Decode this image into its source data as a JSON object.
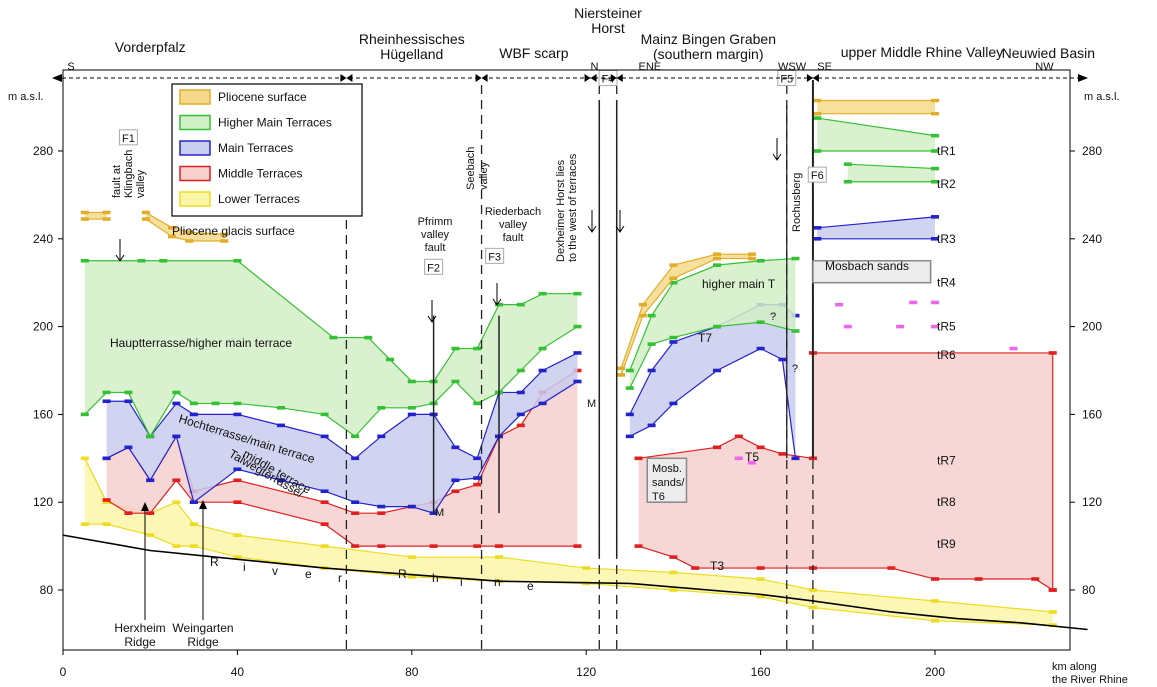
{
  "chart_data": {
    "type": "area",
    "x_axis": {
      "label_line1": "km along",
      "label_line2": "the River Rhine",
      "range": [
        0,
        230
      ],
      "ticks": [
        0,
        40,
        80,
        120,
        160,
        200
      ]
    },
    "y_axis": {
      "label": "m a.s.l.",
      "range": [
        60,
        300
      ],
      "ticks": [
        80,
        120,
        160,
        200,
        240,
        280
      ]
    },
    "regions": [
      {
        "text": "Vorderpfalz",
        "x": 20
      },
      {
        "text": "Rheinhessisches",
        "text2": "Hügelland",
        "x": 80
      },
      {
        "text": "WBF scarp",
        "x": 108
      },
      {
        "text": "Niersteiner",
        "text2": "Horst",
        "x": 125
      },
      {
        "text": "Mainz Bingen Graben",
        "text2": "(southern margin)",
        "x": 148
      },
      {
        "text": "upper Middle Rhine Valley",
        "x": 197
      },
      {
        "text": "Neuwied Basin",
        "x": 226
      }
    ],
    "directions": [
      {
        "text": "S",
        "x": 1
      },
      {
        "text": "N",
        "x": 121
      },
      {
        "text": "ENE",
        "x": 132
      },
      {
        "text": "WSW",
        "x": 164
      },
      {
        "text": "SE",
        "x": 173
      },
      {
        "text": "NW",
        "x": 223
      }
    ],
    "legend": [
      {
        "label": "Pliocene surface",
        "fill": "#f6d98c",
        "stroke": "#e2ad2a"
      },
      {
        "label": "Higher Main Terraces",
        "fill": "#d3efc7",
        "stroke": "#35c035"
      },
      {
        "label": "Main Terraces",
        "fill": "#c9cdef",
        "stroke": "#2323cc"
      },
      {
        "label": "Middle Terraces",
        "fill": "#f6cfcf",
        "stroke": "#e02020"
      },
      {
        "label": "Lower Terraces",
        "fill": "#fbf6a8",
        "stroke": "#eddc20"
      }
    ],
    "faults": [
      {
        "code": "F1",
        "x": 15,
        "y": 286
      },
      {
        "code": "F2",
        "x": 85,
        "y": 227
      },
      {
        "code": "F3",
        "x": 99,
        "y": 232
      },
      {
        "code": "F4",
        "x": 125,
        "y": 313
      },
      {
        "code": "F5",
        "x": 166,
        "y": 313
      },
      {
        "code": "F6",
        "x": 173,
        "y": 269
      }
    ],
    "terrace_labels": [
      "tR1",
      "tR2",
      "tR3",
      "tR4",
      "tR5",
      "tR6",
      "tR7",
      "tR8",
      "tR9"
    ],
    "terrace_label_y": [
      280,
      265,
      240,
      220,
      200,
      187,
      139,
      120,
      101
    ],
    "annotations": {
      "fault_klingbach": [
        "fault at",
        "Klingbach",
        "valley"
      ],
      "pliocene_glacis": "Pliocene glacis surface",
      "seebach": [
        "Seebach",
        "valley"
      ],
      "pfrimm": [
        "Pfrimm",
        "valley",
        "fault"
      ],
      "riederbach": [
        "Riederbach",
        "valley",
        "fault"
      ],
      "dexheimer": [
        "Dexheimer Horst lies",
        "to the west of terraces"
      ],
      "rochusberg": "Rochusberg",
      "hauptterrasse": "Hauptterrasse/higher main terrace",
      "hochterrasse": "Hochterrasse/main terrace",
      "talweg": [
        "Talwegterrasse/",
        "middle terrace"
      ],
      "higher_main_t": "higher main T",
      "mosbach_sands": "Mosbach sands",
      "mosb_t6": [
        "Mosb.",
        "sands/",
        "T6"
      ],
      "t7": "T7",
      "t5": "T5",
      "t3": "T3",
      "m": "M",
      "herxheim": [
        "Herxheim",
        "Ridge"
      ],
      "weingarten": [
        "Weingarten",
        "Ridge"
      ],
      "river_letters": [
        "R",
        "i",
        "v",
        "e",
        "r",
        "R",
        "h",
        "i",
        "n",
        "e"
      ],
      "question": "?"
    },
    "series": [
      {
        "name": "Pliocene surface",
        "class": "pliocene",
        "top": [
          [
            5,
            252
          ],
          [
            10,
            252
          ]
        ],
        "bottom": [
          [
            5,
            249
          ],
          [
            10,
            249
          ]
        ]
      },
      {
        "name": "Pliocene surface",
        "class": "pliocene",
        "top": [
          [
            19,
            252
          ],
          [
            25,
            245
          ],
          [
            29,
            243
          ],
          [
            37,
            242
          ]
        ],
        "bottom": [
          [
            19,
            249
          ],
          [
            25,
            241
          ],
          [
            29,
            239
          ],
          [
            37,
            239
          ]
        ]
      },
      {
        "name": "Pliocene surface",
        "class": "pliocene",
        "top": [
          [
            128,
            181
          ],
          [
            133,
            210
          ],
          [
            140,
            228
          ],
          [
            150,
            233
          ],
          [
            158,
            233
          ]
        ],
        "bottom": [
          [
            128,
            178
          ],
          [
            133,
            205
          ],
          [
            140,
            222
          ],
          [
            150,
            231
          ],
          [
            158,
            231
          ]
        ]
      },
      {
        "name": "Pliocene surface",
        "class": "pliocene",
        "top": [
          [
            173,
            303
          ],
          [
            200,
            303
          ]
        ],
        "bottom": [
          [
            173,
            297
          ],
          [
            200,
            297
          ]
        ]
      },
      {
        "name": "Higher Main Terraces",
        "class": "higher",
        "top": [
          [
            5,
            230
          ],
          [
            18,
            230
          ],
          [
            23,
            230
          ],
          [
            40,
            230
          ],
          [
            62,
            195
          ],
          [
            70,
            195
          ],
          [
            75,
            185
          ],
          [
            80,
            175
          ],
          [
            85,
            175
          ],
          [
            90,
            190
          ],
          [
            95,
            190
          ],
          [
            100,
            210
          ],
          [
            105,
            210
          ],
          [
            110,
            215
          ],
          [
            118,
            215
          ]
        ],
        "bottom": [
          [
            5,
            160
          ],
          [
            10,
            170
          ],
          [
            15,
            170
          ],
          [
            20,
            150
          ],
          [
            26,
            170
          ],
          [
            30,
            165
          ],
          [
            35,
            165
          ],
          [
            40,
            165
          ],
          [
            50,
            163
          ],
          [
            60,
            160
          ],
          [
            67,
            150
          ],
          [
            73,
            163
          ],
          [
            80,
            163
          ],
          [
            85,
            165
          ],
          [
            90,
            175
          ],
          [
            95,
            165
          ],
          [
            100,
            170
          ],
          [
            105,
            180
          ],
          [
            110,
            190
          ],
          [
            118,
            200
          ]
        ]
      },
      {
        "name": "Higher Main Terraces",
        "class": "higher",
        "top": [
          [
            130,
            180
          ],
          [
            135,
            205
          ],
          [
            140,
            220
          ],
          [
            150,
            228
          ],
          [
            160,
            230
          ],
          [
            168,
            231
          ]
        ],
        "bottom": [
          [
            130,
            172
          ],
          [
            135,
            192
          ],
          [
            140,
            195
          ],
          [
            150,
            200
          ],
          [
            160,
            202
          ],
          [
            168,
            198
          ]
        ]
      },
      {
        "name": "Higher Main Terraces",
        "class": "higher",
        "top": [
          [
            173,
            295
          ],
          [
            200,
            287
          ]
        ],
        "bottom": [
          [
            173,
            280
          ],
          [
            200,
            280
          ]
        ]
      },
      {
        "name": "Higher Main Terraces",
        "class": "higher",
        "top": [
          [
            180,
            274
          ],
          [
            200,
            272
          ]
        ],
        "bottom": [
          [
            180,
            266
          ],
          [
            200,
            266
          ]
        ]
      },
      {
        "name": "Main Terraces",
        "class": "main",
        "top": [
          [
            10,
            166
          ],
          [
            15,
            166
          ],
          [
            20,
            150
          ],
          [
            26,
            165
          ],
          [
            30,
            160
          ],
          [
            40,
            160
          ],
          [
            50,
            155
          ],
          [
            60,
            150
          ],
          [
            67,
            140
          ],
          [
            73,
            150
          ],
          [
            80,
            160
          ],
          [
            85,
            160
          ],
          [
            90,
            145
          ],
          [
            95,
            140
          ],
          [
            100,
            170
          ],
          [
            105,
            170
          ],
          [
            110,
            180
          ],
          [
            118,
            188
          ]
        ],
        "bottom": [
          [
            10,
            140
          ],
          [
            15,
            145
          ],
          [
            20,
            130
          ],
          [
            26,
            150
          ],
          [
            30,
            120
          ],
          [
            40,
            135
          ],
          [
            50,
            130
          ],
          [
            60,
            125
          ],
          [
            67,
            120
          ],
          [
            73,
            118
          ],
          [
            80,
            118
          ],
          [
            85,
            115
          ],
          [
            90,
            130
          ],
          [
            95,
            131
          ],
          [
            100,
            150
          ],
          [
            105,
            160
          ],
          [
            110,
            165
          ],
          [
            118,
            175
          ]
        ]
      },
      {
        "name": "Main Terraces",
        "class": "main",
        "top": [
          [
            130,
            160
          ],
          [
            135,
            180
          ],
          [
            140,
            193
          ],
          [
            150,
            200
          ],
          [
            160,
            210
          ],
          [
            165,
            210
          ],
          [
            168,
            205
          ]
        ],
        "bottom": [
          [
            130,
            150
          ],
          [
            135,
            155
          ],
          [
            140,
            165
          ],
          [
            150,
            180
          ],
          [
            160,
            190
          ],
          [
            165,
            185
          ],
          [
            168,
            140
          ]
        ]
      },
      {
        "name": "Main Terraces",
        "class": "main",
        "top": [
          [
            173,
            245
          ],
          [
            200,
            250
          ]
        ],
        "bottom": [
          [
            173,
            240
          ],
          [
            200,
            240
          ]
        ]
      },
      {
        "name": "Middle Terraces",
        "class": "middle",
        "top": [
          [
            10,
            140
          ],
          [
            15,
            145
          ],
          [
            20,
            130
          ],
          [
            26,
            150
          ],
          [
            30,
            125
          ],
          [
            40,
            130
          ],
          [
            60,
            120
          ],
          [
            67,
            115
          ],
          [
            73,
            115
          ],
          [
            80,
            118
          ],
          [
            85,
            120
          ],
          [
            90,
            125
          ],
          [
            95,
            128
          ],
          [
            100,
            150
          ],
          [
            105,
            155
          ],
          [
            110,
            170
          ],
          [
            118,
            180
          ]
        ],
        "bottom": [
          [
            10,
            121
          ],
          [
            15,
            115
          ],
          [
            20,
            115
          ],
          [
            26,
            130
          ],
          [
            30,
            120
          ],
          [
            40,
            120
          ],
          [
            60,
            110
          ],
          [
            67,
            100
          ],
          [
            73,
            100
          ],
          [
            85,
            100
          ],
          [
            95,
            100
          ],
          [
            100,
            100
          ],
          [
            118,
            100
          ]
        ]
      },
      {
        "name": "Middle Terraces",
        "class": "middle",
        "top": [
          [
            132,
            140
          ],
          [
            150,
            145
          ],
          [
            155,
            150
          ],
          [
            160,
            145
          ],
          [
            165,
            142
          ],
          [
            172,
            140
          ],
          [
            172,
            188
          ],
          [
            227,
            188
          ],
          [
            227,
            80
          ]
        ],
        "bottom": [
          [
            132,
            100
          ],
          [
            140,
            95
          ],
          [
            145,
            90
          ],
          [
            160,
            90
          ],
          [
            172,
            90
          ],
          [
            190,
            90
          ],
          [
            200,
            85
          ],
          [
            210,
            85
          ],
          [
            223,
            85
          ],
          [
            227,
            80
          ]
        ]
      },
      {
        "name": "Lower Terraces",
        "class": "lower",
        "top": [
          [
            5,
            140
          ],
          [
            10,
            120
          ],
          [
            20,
            115
          ],
          [
            26,
            120
          ],
          [
            30,
            110
          ],
          [
            40,
            105
          ],
          [
            60,
            100
          ],
          [
            80,
            95
          ],
          [
            100,
            95
          ],
          [
            120,
            90
          ],
          [
            140,
            88
          ],
          [
            160,
            85
          ],
          [
            172,
            80
          ],
          [
            200,
            75
          ],
          [
            227,
            70
          ]
        ],
        "bottom": [
          [
            5,
            110
          ],
          [
            10,
            110
          ],
          [
            20,
            105
          ],
          [
            26,
            100
          ],
          [
            30,
            100
          ],
          [
            40,
            95
          ],
          [
            60,
            90
          ],
          [
            80,
            86
          ],
          [
            100,
            84
          ],
          [
            120,
            83
          ],
          [
            140,
            80
          ],
          [
            160,
            77
          ],
          [
            172,
            72
          ],
          [
            200,
            66
          ],
          [
            227,
            64
          ]
        ]
      }
    ],
    "rhine_profile": [
      [
        0,
        105
      ],
      [
        20,
        98
      ],
      [
        60,
        90
      ],
      [
        100,
        84
      ],
      [
        130,
        83
      ],
      [
        160,
        78
      ],
      [
        172,
        75
      ],
      [
        190,
        70
      ],
      [
        205,
        67
      ],
      [
        220,
        65
      ],
      [
        235,
        62
      ]
    ],
    "dashed_faults": [
      65,
      96,
      123,
      127,
      166,
      172
    ],
    "solid_faults": [
      85,
      100,
      123,
      127
    ],
    "pink_marks": [
      [
        178,
        210
      ],
      [
        195,
        211
      ],
      [
        200,
        211
      ],
      [
        180,
        200
      ],
      [
        192,
        200
      ],
      [
        200,
        200
      ],
      [
        218,
        190
      ],
      [
        155,
        140
      ],
      [
        158,
        138
      ]
    ],
    "grey_boxes": [
      {
        "x1": 172,
        "x2": 199,
        "y1": 230,
        "y2": 220,
        "text_key": "mosbach_sands"
      },
      {
        "x1": 134,
        "x2": 143,
        "y1": 140,
        "y2": 120,
        "text_key": "mosb_t6"
      }
    ]
  }
}
